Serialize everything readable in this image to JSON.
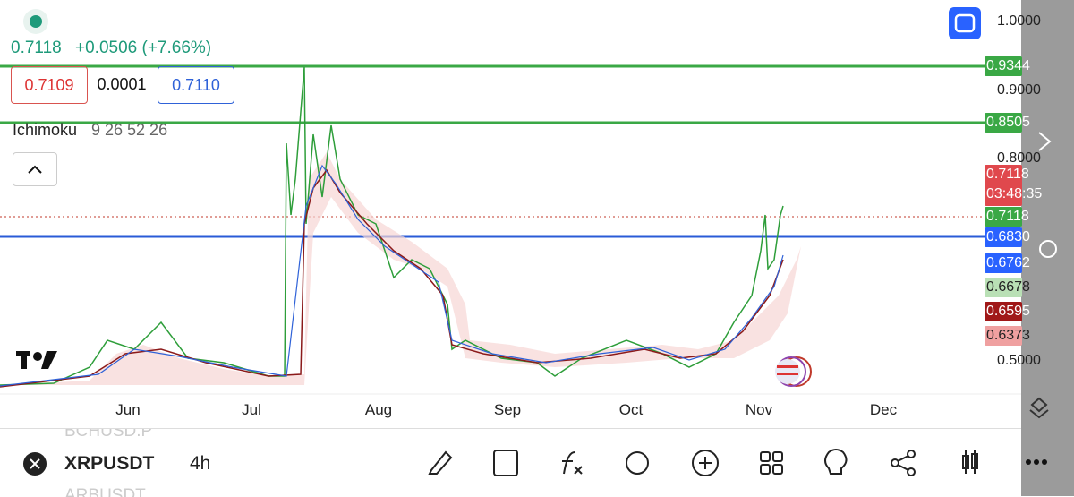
{
  "header": {
    "last_price": "0.7118",
    "change": "+0.0506 (+7.66%)",
    "bid": "0.7109",
    "spread": "0.0001",
    "ask": "0.7110"
  },
  "indicator": {
    "name": "Ichimoku",
    "params": "9 26 52 26"
  },
  "price_axis": [
    "1.0000",
    "0.9000",
    "0.8000",
    "0.5000"
  ],
  "price_tags": [
    {
      "label": "0.9344",
      "kind": "line-green"
    },
    {
      "label": "0.8505",
      "kind": "line-green"
    },
    {
      "label": "0.7118",
      "kind": "last"
    },
    {
      "label": "0.7118",
      "kind": "green"
    },
    {
      "label": "0.6830",
      "kind": "blue"
    },
    {
      "label": "0.6762",
      "kind": "blue"
    },
    {
      "label": "0.6678",
      "kind": "light-green"
    },
    {
      "label": "0.6595",
      "kind": "dark-red"
    },
    {
      "label": "0.6373",
      "kind": "pink"
    }
  ],
  "countdown": "03:48:35",
  "time_axis": [
    "Jun",
    "Jul",
    "Aug",
    "Sep",
    "Oct",
    "Nov",
    "Dec"
  ],
  "toolbar": {
    "prev_symbol": "BCHUSD.P",
    "symbol": "XRPUSDT",
    "interval": "4h",
    "next_symbol": "ARBUSDT"
  }
}
